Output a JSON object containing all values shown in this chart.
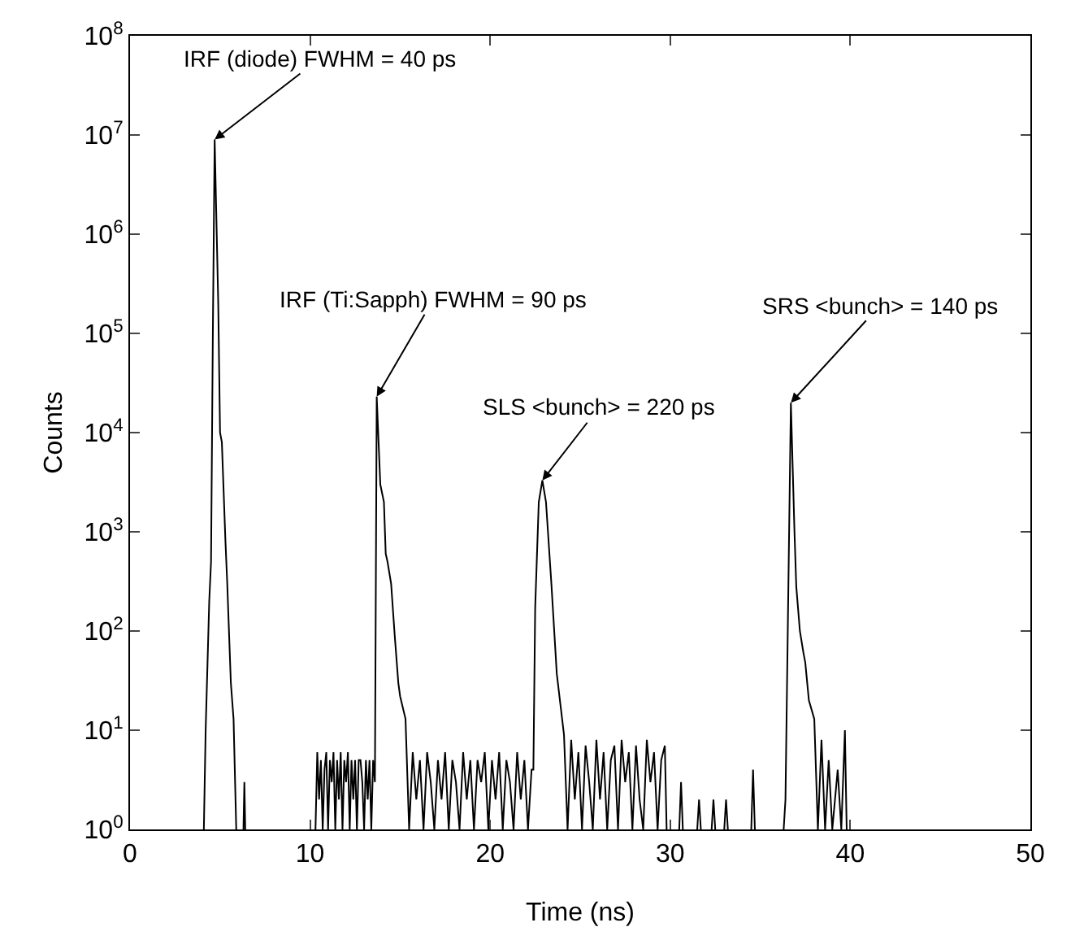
{
  "chart_data": {
    "type": "line",
    "xlabel": "Time (ns)",
    "ylabel": "Counts",
    "log": "y",
    "marker": "none",
    "line_style": "solid",
    "xlim": [
      0,
      50
    ],
    "xticks": [
      0,
      10,
      20,
      30,
      40,
      50
    ],
    "ylim": [
      1,
      100000000
    ],
    "yticks": [
      {
        "value": 1,
        "label": "10$^{0}$"
      },
      {
        "value": 10,
        "label": "10$^{1}$"
      },
      {
        "value": 100,
        "label": "10$^{2}$"
      },
      {
        "value": 1000,
        "label": "10$^{3}$"
      },
      {
        "value": 10000,
        "label": "10$^{4}$"
      },
      {
        "value": 100000,
        "label": "10$^{5}$"
      },
      {
        "value": 1000000,
        "label": "10$^{6}$"
      },
      {
        "value": 10000000,
        "label": "10$^{7}$"
      },
      {
        "value": 100000000,
        "label": "10$^{8}$"
      }
    ],
    "annotations": [
      {
        "text": "IRF (diode) FWHM = 40 ps",
        "x": 4.7,
        "y": 9000000
      },
      {
        "text": "IRF (Ti:Sapph) FWHM = 90 ps",
        "x": 13.7,
        "y": 23000
      },
      {
        "text": "SLS <bunch> = 220 ps",
        "x": 22.9,
        "y": 3300
      },
      {
        "text": "SRS <bunch> = 140 ps",
        "x": 36.7,
        "y": 20000
      }
    ],
    "series": [
      {
        "color": "#000000",
        "x": [
          4.1,
          4.2,
          4.4,
          4.5,
          4.6,
          4.7,
          4.9,
          5.0,
          5.1,
          5.3,
          5.4,
          5.6,
          5.75,
          5.9,
          6.0,
          6.3,
          6.35,
          6.4,
          6.5,
          10.3,
          10.4,
          10.5,
          10.6,
          10.7,
          10.8,
          10.9,
          11.0,
          11.1,
          11.2,
          11.3,
          11.4,
          11.5,
          11.6,
          11.7,
          11.8,
          11.9,
          12.0,
          12.1,
          12.2,
          12.3,
          12.4,
          12.5,
          12.6,
          12.7,
          12.8,
          12.9,
          13.0,
          13.1,
          13.2,
          13.3,
          13.4,
          13.5,
          13.6,
          13.7,
          13.9,
          14.1,
          14.2,
          14.3,
          14.5,
          14.7,
          14.9,
          15.0,
          15.3,
          15.5,
          15.7,
          15.9,
          16.1,
          16.3,
          16.5,
          16.7,
          16.9,
          17.1,
          17.3,
          17.5,
          17.7,
          17.9,
          18.1,
          18.3,
          18.5,
          18.7,
          18.9,
          19.1,
          19.3,
          19.5,
          19.7,
          19.9,
          20.1,
          20.3,
          20.5,
          20.7,
          20.9,
          21.1,
          21.3,
          21.5,
          21.7,
          21.9,
          22.1,
          22.3,
          22.4,
          22.5,
          22.7,
          22.9,
          23.1,
          23.4,
          23.7,
          24.1,
          24.3,
          24.5,
          24.7,
          24.9,
          25.1,
          25.3,
          25.5,
          25.7,
          25.9,
          26.1,
          26.3,
          26.5,
          26.7,
          26.9,
          27.1,
          27.3,
          27.5,
          27.7,
          27.9,
          28.1,
          28.3,
          28.5,
          28.7,
          28.9,
          29.1,
          29.3,
          29.5,
          29.7,
          29.8,
          29.9,
          30.5,
          30.6,
          30.7,
          30.8,
          31.5,
          31.6,
          31.7,
          31.8,
          32.3,
          32.4,
          32.5,
          32.6,
          33.0,
          33.1,
          33.2,
          33.3,
          34.5,
          34.6,
          34.7,
          34.8,
          36.3,
          36.4,
          36.7,
          36.9,
          37.0,
          37.2,
          37.4,
          37.5,
          37.7,
          38.0,
          38.2,
          38.4,
          38.6,
          38.8,
          39.0,
          39.3,
          39.5,
          39.7,
          39.8
        ],
        "values": [
          1,
          10,
          200,
          500,
          100000,
          9000000,
          200000,
          10000,
          8000,
          800,
          300,
          30,
          13,
          1,
          null,
          1,
          3,
          1,
          null,
          1,
          6,
          2,
          5,
          1,
          4,
          6,
          1,
          5,
          3,
          6,
          1,
          5,
          2,
          6,
          1,
          5,
          3,
          6,
          1,
          5,
          2,
          5,
          1,
          5,
          5,
          3,
          1,
          5,
          2,
          5,
          1,
          5,
          3,
          23000,
          3000,
          2000,
          600,
          500,
          300,
          90,
          30,
          22,
          13,
          1,
          6,
          2,
          5,
          1,
          6,
          3,
          1,
          5,
          2,
          6,
          1,
          5,
          3,
          1,
          6,
          2,
          5,
          1,
          5,
          3,
          6,
          1,
          5,
          2,
          6,
          1,
          5,
          3,
          1,
          6,
          2,
          5,
          1,
          4,
          4,
          170,
          2000,
          3300,
          2000,
          300,
          37,
          9,
          1,
          8,
          2,
          6,
          1,
          7,
          3,
          1,
          8,
          2,
          6,
          1,
          5,
          7,
          1,
          8,
          3,
          6,
          1,
          7,
          2,
          1,
          8,
          3,
          6,
          1,
          5,
          7,
          1,
          null,
          1,
          3,
          1,
          null,
          1,
          2,
          1,
          null,
          1,
          2,
          1,
          null,
          1,
          2,
          1,
          null,
          1,
          4,
          1,
          null,
          1,
          2,
          20000,
          1000,
          280,
          100,
          60,
          48,
          20,
          13,
          1,
          8,
          1,
          5,
          1,
          4,
          1,
          10,
          1
        ]
      }
    ]
  }
}
